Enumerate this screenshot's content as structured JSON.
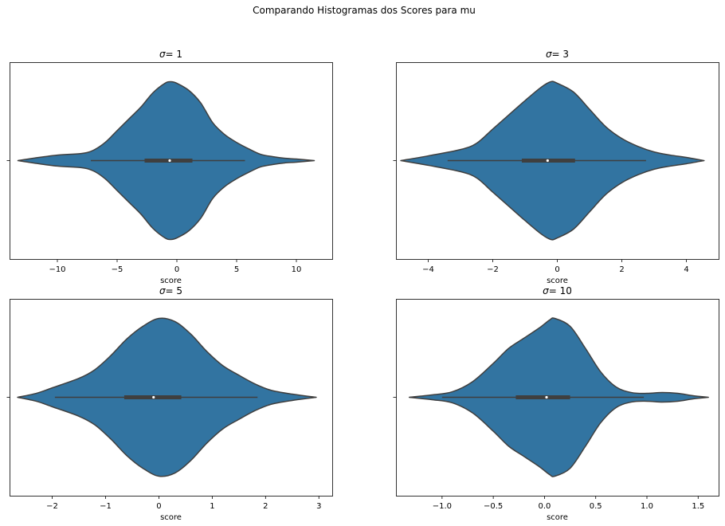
{
  "figure": {
    "suptitle": "Comparando Histogramas dos Scores para mu"
  },
  "colors": {
    "violin_fill": "#3274a1",
    "violin_edge": "#3f3f3f",
    "box": "#3f3f3f",
    "median": "#ffffff",
    "axes_edge": "#000000"
  },
  "chart_data": [
    {
      "type": "violin",
      "title_prefix": "σ",
      "title_suffix": "=  1",
      "xlabel": "score",
      "ylabel": "",
      "orientation": "horizontal",
      "grid": false,
      "xlim": [
        -14.0,
        13.0
      ],
      "xticks": [
        -10,
        -5,
        0,
        5,
        10
      ],
      "xtick_labels": [
        "−10",
        "−5",
        "0",
        "5",
        "10"
      ],
      "yticks": [
        ""
      ],
      "profile": [
        [
          -13.3,
          0.0
        ],
        [
          -12.0,
          0.03
        ],
        [
          -10.0,
          0.07
        ],
        [
          -8.0,
          0.09
        ],
        [
          -7.0,
          0.13
        ],
        [
          -6.0,
          0.23
        ],
        [
          -5.0,
          0.38
        ],
        [
          -4.0,
          0.53
        ],
        [
          -3.0,
          0.68
        ],
        [
          -2.0,
          0.86
        ],
        [
          -1.0,
          0.98
        ],
        [
          -0.5,
          1.0
        ],
        [
          0.0,
          0.98
        ],
        [
          1.0,
          0.89
        ],
        [
          2.0,
          0.73
        ],
        [
          3.0,
          0.48
        ],
        [
          4.0,
          0.33
        ],
        [
          5.0,
          0.23
        ],
        [
          6.0,
          0.15
        ],
        [
          7.0,
          0.08
        ],
        [
          8.0,
          0.05
        ],
        [
          9.0,
          0.03
        ],
        [
          10.0,
          0.02
        ],
        [
          11.5,
          0.0
        ]
      ],
      "whisker": [
        -7.2,
        5.7
      ],
      "quartiles": [
        -2.7,
        1.3
      ],
      "median": -0.6
    },
    {
      "type": "violin",
      "title_prefix": "σ",
      "title_suffix": "=  3",
      "xlabel": "score",
      "ylabel": "",
      "orientation": "horizontal",
      "grid": false,
      "xlim": [
        -5.0,
        5.0
      ],
      "xticks": [
        -4,
        -2,
        0,
        2,
        4
      ],
      "xtick_labels": [
        "−4",
        "−2",
        "0",
        "2",
        "4"
      ],
      "yticks": [
        ""
      ],
      "profile": [
        [
          -4.85,
          0.0
        ],
        [
          -4.0,
          0.06
        ],
        [
          -3.0,
          0.14
        ],
        [
          -2.5,
          0.22
        ],
        [
          -2.0,
          0.4
        ],
        [
          -1.5,
          0.58
        ],
        [
          -1.0,
          0.76
        ],
        [
          -0.5,
          0.93
        ],
        [
          -0.2,
          1.0
        ],
        [
          0.0,
          0.98
        ],
        [
          0.5,
          0.87
        ],
        [
          1.0,
          0.65
        ],
        [
          1.5,
          0.43
        ],
        [
          2.0,
          0.28
        ],
        [
          2.5,
          0.18
        ],
        [
          3.0,
          0.11
        ],
        [
          3.5,
          0.07
        ],
        [
          4.0,
          0.04
        ],
        [
          4.55,
          0.0
        ]
      ],
      "whisker": [
        -3.4,
        2.75
      ],
      "quartiles": [
        -1.1,
        0.55
      ],
      "median": -0.3
    },
    {
      "type": "violin",
      "title_prefix": "σ",
      "title_suffix": "=  5",
      "xlabel": "score",
      "ylabel": "",
      "orientation": "horizontal",
      "grid": false,
      "xlim": [
        -2.8,
        3.25
      ],
      "xticks": [
        -2,
        -1,
        0,
        1,
        2,
        3
      ],
      "xtick_labels": [
        "−2",
        "−1",
        "0",
        "1",
        "2",
        "3"
      ],
      "yticks": [
        ""
      ],
      "profile": [
        [
          -2.65,
          0.0
        ],
        [
          -2.3,
          0.05
        ],
        [
          -2.0,
          0.12
        ],
        [
          -1.5,
          0.24
        ],
        [
          -1.2,
          0.35
        ],
        [
          -0.9,
          0.53
        ],
        [
          -0.6,
          0.74
        ],
        [
          -0.3,
          0.9
        ],
        [
          0.0,
          1.0
        ],
        [
          0.3,
          0.96
        ],
        [
          0.6,
          0.8
        ],
        [
          0.9,
          0.58
        ],
        [
          1.2,
          0.4
        ],
        [
          1.5,
          0.28
        ],
        [
          1.8,
          0.17
        ],
        [
          2.1,
          0.09
        ],
        [
          2.5,
          0.04
        ],
        [
          2.95,
          0.0
        ]
      ],
      "whisker": [
        -1.95,
        1.85
      ],
      "quartiles": [
        -0.65,
        0.42
      ],
      "median": -0.1
    },
    {
      "type": "violin",
      "title_prefix": "σ",
      "title_suffix": "=  10",
      "xlabel": "score",
      "ylabel": "",
      "orientation": "horizontal",
      "grid": false,
      "xlim": [
        -1.45,
        1.7
      ],
      "xticks": [
        -1.0,
        -0.5,
        0.0,
        0.5,
        1.0,
        1.5
      ],
      "xtick_labels": [
        "−1.0",
        "−0.5",
        "0.0",
        "0.5",
        "1.0",
        "1.5"
      ],
      "yticks": [
        ""
      ],
      "profile": [
        [
          -1.32,
          0.0
        ],
        [
          -1.1,
          0.03
        ],
        [
          -0.9,
          0.07
        ],
        [
          -0.7,
          0.2
        ],
        [
          -0.5,
          0.43
        ],
        [
          -0.35,
          0.62
        ],
        [
          -0.2,
          0.75
        ],
        [
          -0.05,
          0.88
        ],
        [
          0.05,
          0.98
        ],
        [
          0.1,
          1.0
        ],
        [
          0.25,
          0.9
        ],
        [
          0.4,
          0.62
        ],
        [
          0.55,
          0.32
        ],
        [
          0.7,
          0.13
        ],
        [
          0.85,
          0.06
        ],
        [
          1.0,
          0.05
        ],
        [
          1.15,
          0.06
        ],
        [
          1.3,
          0.05
        ],
        [
          1.45,
          0.02
        ],
        [
          1.6,
          0.0
        ]
      ],
      "whisker": [
        -1.0,
        0.97
      ],
      "quartiles": [
        -0.28,
        0.25
      ],
      "median": 0.02
    }
  ]
}
